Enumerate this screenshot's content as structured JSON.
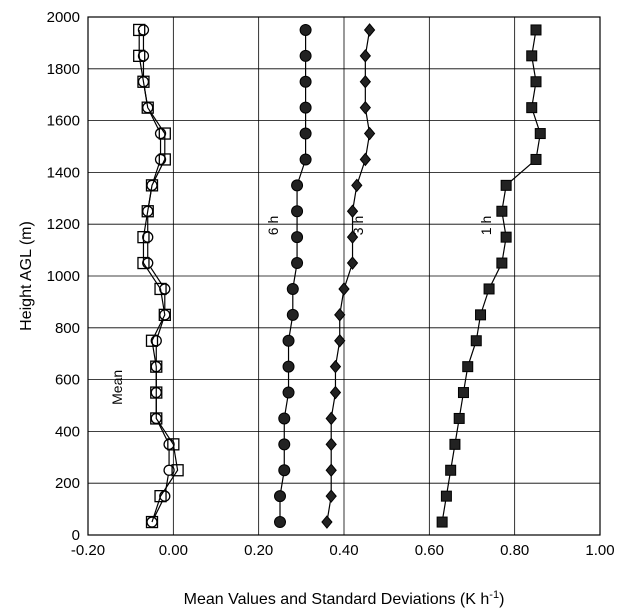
{
  "chart_data": {
    "type": "line",
    "title": "",
    "xlabel": "Mean Values and Standard Deviations (K h",
    "xlabel_superscript": "-1",
    "xlabel_suffix": ")",
    "ylabel": "Height AGL (m)",
    "xlim": [
      -0.2,
      1.0
    ],
    "ylim": [
      0,
      2000
    ],
    "xticks": [
      "-0.20",
      "0.00",
      "0.20",
      "0.40",
      "0.60",
      "0.80",
      "1.00"
    ],
    "yticks": [
      "0",
      "200",
      "400",
      "600",
      "800",
      "1000",
      "1200",
      "1400",
      "1600",
      "1800",
      "2000"
    ],
    "grid": true,
    "y": [
      50,
      150,
      250,
      350,
      450,
      550,
      650,
      750,
      850,
      950,
      1050,
      1150,
      1250,
      1350,
      1450,
      1550,
      1650,
      1750,
      1850,
      1950
    ],
    "series": [
      {
        "name": "Mean",
        "marker": "circle-open",
        "values": [
          -0.05,
          -0.02,
          -0.01,
          -0.01,
          -0.04,
          -0.04,
          -0.04,
          -0.04,
          -0.02,
          -0.02,
          -0.06,
          -0.06,
          -0.06,
          -0.05,
          -0.03,
          -0.03,
          -0.06,
          -0.07,
          -0.07,
          -0.07
        ]
      },
      {
        "name": "",
        "marker": "square-open",
        "values": [
          -0.05,
          -0.03,
          0.01,
          0.0,
          -0.04,
          -0.04,
          -0.04,
          -0.05,
          -0.02,
          -0.03,
          -0.07,
          -0.07,
          -0.06,
          -0.05,
          -0.02,
          -0.02,
          -0.06,
          -0.07,
          -0.08,
          -0.08
        ]
      },
      {
        "name": "6 h",
        "marker": "circle-filled",
        "values": [
          0.25,
          0.25,
          0.26,
          0.26,
          0.26,
          0.27,
          0.27,
          0.27,
          0.28,
          0.28,
          0.29,
          0.29,
          0.29,
          0.29,
          0.31,
          0.31,
          0.31,
          0.31,
          0.31,
          0.31
        ]
      },
      {
        "name": "3 h",
        "marker": "diamond-filled",
        "values": [
          0.36,
          0.37,
          0.37,
          0.37,
          0.37,
          0.38,
          0.38,
          0.39,
          0.39,
          0.4,
          0.42,
          0.42,
          0.42,
          0.43,
          0.45,
          0.46,
          0.45,
          0.45,
          0.45,
          0.46
        ]
      },
      {
        "name": "1 h",
        "marker": "square-filled",
        "values": [
          0.63,
          0.64,
          0.65,
          0.66,
          0.67,
          0.68,
          0.69,
          0.71,
          0.72,
          0.74,
          0.77,
          0.78,
          0.77,
          0.78,
          0.85,
          0.86,
          0.84,
          0.85,
          0.84,
          0.85
        ]
      }
    ],
    "series_labels": [
      {
        "text": "Mean",
        "x": -0.12,
        "y": 570
      },
      {
        "text": "6 h",
        "x": 0.245,
        "y": 1195
      },
      {
        "text": "3 h",
        "x": 0.445,
        "y": 1195
      },
      {
        "text": "1 h",
        "x": 0.745,
        "y": 1195
      }
    ]
  }
}
